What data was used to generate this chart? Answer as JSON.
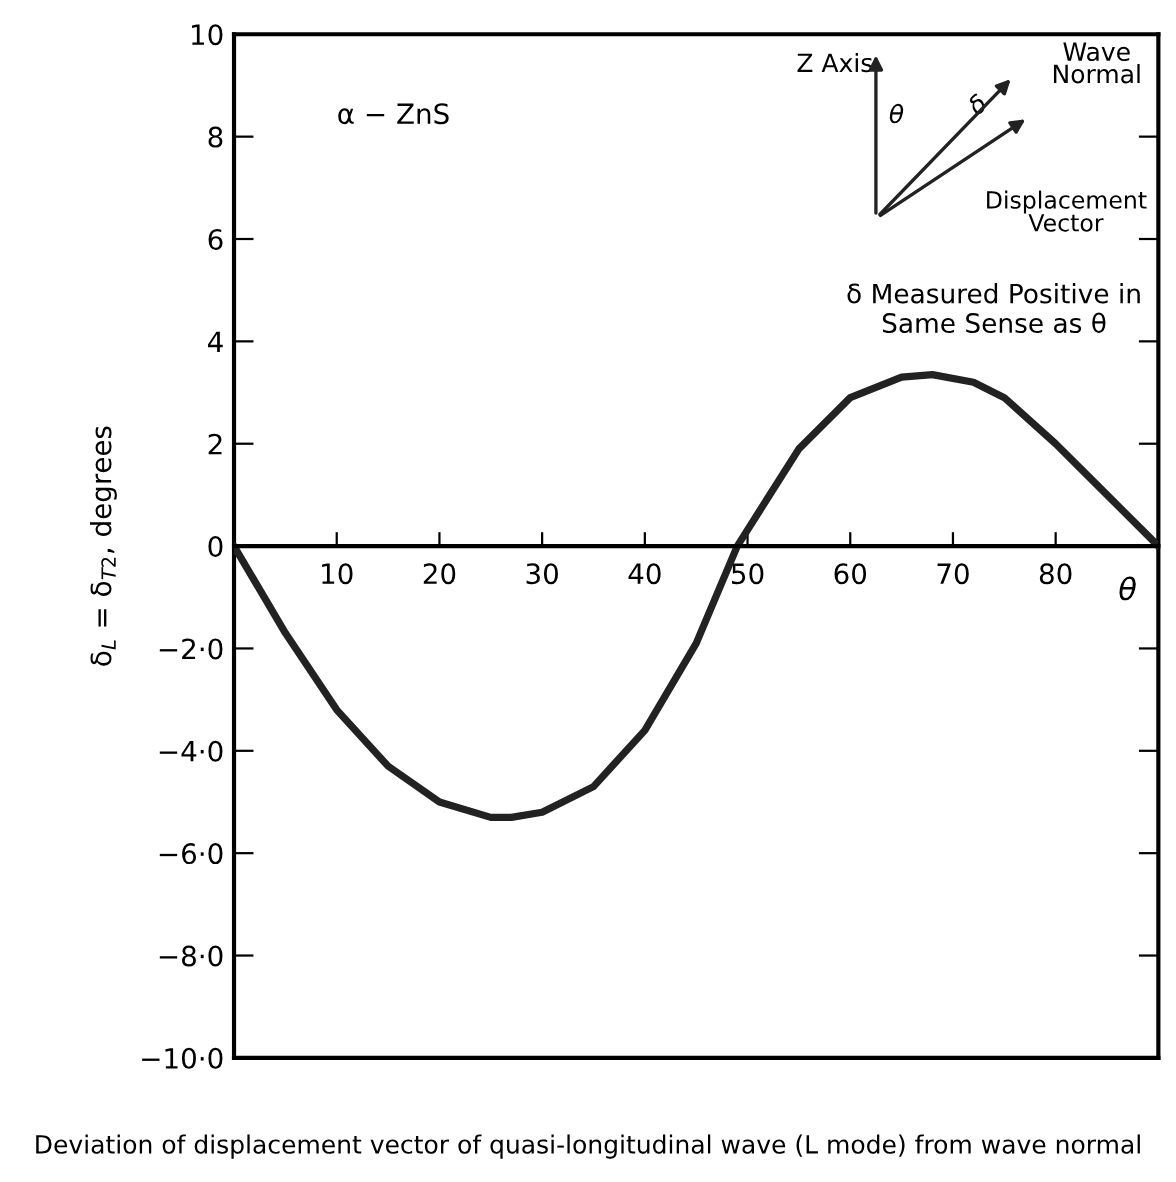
{
  "chart_data": {
    "type": "line",
    "ylabel": "δ$_{L}$ = δ$_{T2}$, degrees",
    "xlabel": "θ",
    "annotations": [
      "α − ZnS",
      "Z Axis",
      "Wave Normal",
      "Displacement Vector",
      "θ",
      "δ",
      "δ Measured Positive in Same Sense as θ",
      "Deviation of displacement vector of quasi-longitudinal wave (L mode) from wave normal"
    ],
    "x": [
      0,
      5,
      10,
      15,
      20,
      25,
      27,
      30,
      35,
      40,
      45,
      49,
      55,
      60,
      65,
      68,
      72,
      75,
      80,
      85,
      90
    ],
    "series": [
      {
        "color": "#222222",
        "values": [
          0,
          -1.7,
          -3.2,
          -4.3,
          -5.0,
          -5.3,
          -5.3,
          -5.2,
          -4.7,
          -3.6,
          -1.9,
          0,
          1.9,
          2.9,
          3.3,
          3.35,
          3.2,
          2.9,
          2.0,
          1.0,
          0
        ]
      }
    ],
    "xlim": [
      0,
      90
    ],
    "ylim": [
      -10,
      10
    ],
    "xticks": [
      10,
      20,
      30,
      40,
      50,
      60,
      70,
      80
    ],
    "yticks": [
      10,
      8,
      6,
      4,
      2,
      0,
      {
        "value": -2,
        "label": "−2·0"
      },
      {
        "value": -4,
        "label": "−4·0"
      },
      {
        "value": -6,
        "label": "−6·0"
      },
      {
        "value": -8,
        "label": "−8·0"
      },
      {
        "value": -10,
        "label": "−10·0"
      }
    ],
    "grid": false,
    "legend": false,
    "marker": "none",
    "line_style": "solid"
  }
}
